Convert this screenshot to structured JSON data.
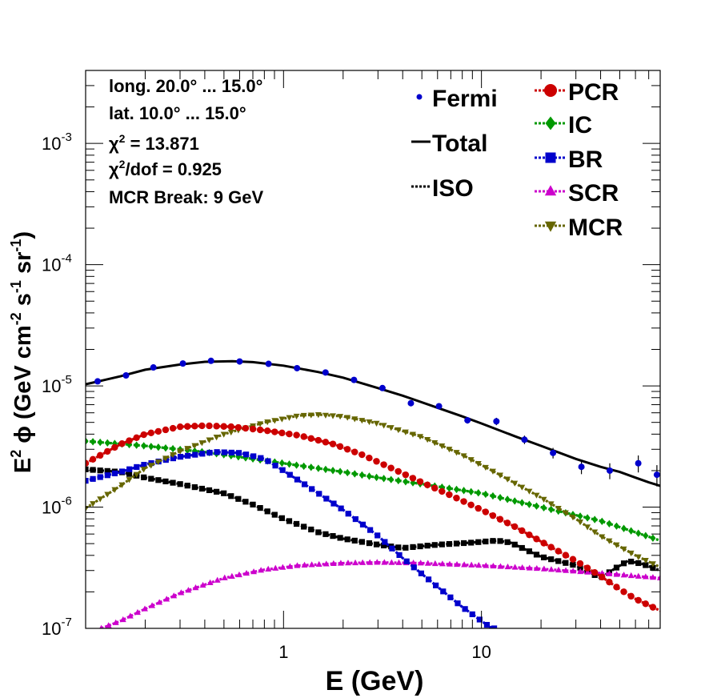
{
  "chart_data": {
    "type": "line",
    "xlabel": "E (GeV)",
    "ylabel_parts": {
      "e": "E",
      "sq": "2",
      "phi": "ϕ",
      "unit_a": "(GeV cm",
      "exp_a": "-2",
      "s": " s",
      "exp_b": "-1",
      "sr": " sr",
      "exp_c": "-1",
      "close": ")"
    },
    "x_scale": "log",
    "y_scale": "log",
    "xlim": [
      0.1,
      80
    ],
    "ylim": [
      1e-07,
      0.004
    ],
    "x_ticks": [
      {
        "v": 1,
        "label": "1"
      },
      {
        "v": 10,
        "label": "10"
      }
    ],
    "y_ticks": [
      {
        "v": 1e-07,
        "base": "10",
        "exp": "-7"
      },
      {
        "v": 1e-06,
        "base": "10",
        "exp": "-6"
      },
      {
        "v": 1e-05,
        "base": "10",
        "exp": "-5"
      },
      {
        "v": 0.0001,
        "base": "10",
        "exp": "-4"
      },
      {
        "v": 0.001,
        "base": "10",
        "exp": "-3"
      }
    ],
    "annotations": [
      {
        "text": "long. 20.0° ... 15.0°"
      },
      {
        "text": "lat. 10.0° ... 15.0°"
      },
      {
        "text_parts": [
          "χ",
          "2",
          " = 13.871"
        ]
      },
      {
        "text_parts": [
          "χ",
          "2",
          "/dof = 0.925"
        ]
      },
      {
        "text": "MCR Break:  9 GeV"
      }
    ],
    "legend": [
      {
        "name": "Fermi",
        "series": "Fermi",
        "col": 0,
        "row": 0
      },
      {
        "name": "Total",
        "series": "Total",
        "col": 0,
        "row": 1
      },
      {
        "name": "ISO",
        "series": "ISO",
        "col": 0,
        "row": 2
      },
      {
        "name": "PCR",
        "series": "PCR",
        "col": 1,
        "row": 0
      },
      {
        "name": "IC",
        "series": "IC",
        "col": 1,
        "row": 1
      },
      {
        "name": "BR",
        "series": "BR",
        "col": 1,
        "row": 2
      },
      {
        "name": "SCR",
        "series": "SCR",
        "col": 1,
        "row": 3
      },
      {
        "name": "MCR",
        "series": "MCR",
        "col": 1,
        "row": 4
      }
    ],
    "fermi": {
      "color": "#0000cc",
      "points": [
        {
          "x": 0.115,
          "y": 1.09e-05,
          "err": 0.03
        },
        {
          "x": 0.16,
          "y": 1.22e-05,
          "err": 0.03
        },
        {
          "x": 0.22,
          "y": 1.42e-05,
          "err": 0.03
        },
        {
          "x": 0.31,
          "y": 1.53e-05,
          "err": 0.03
        },
        {
          "x": 0.43,
          "y": 1.61e-05,
          "err": 0.03
        },
        {
          "x": 0.6,
          "y": 1.59e-05,
          "err": 0.03
        },
        {
          "x": 0.84,
          "y": 1.52e-05,
          "err": 0.03
        },
        {
          "x": 1.17,
          "y": 1.4e-05,
          "err": 0.03
        },
        {
          "x": 1.63,
          "y": 1.29e-05,
          "err": 0.03
        },
        {
          "x": 2.27,
          "y": 1.12e-05,
          "err": 0.03
        },
        {
          "x": 3.16,
          "y": 9.6e-06,
          "err": 0.03
        },
        {
          "x": 4.4,
          "y": 7.2e-06,
          "err": 0.03
        },
        {
          "x": 6.1,
          "y": 6.8e-06,
          "err": 0.03
        },
        {
          "x": 8.5,
          "y": 5.2e-06,
          "err": 0.06
        },
        {
          "x": 11.9,
          "y": 5.1e-06,
          "err": 0.07
        },
        {
          "x": 16.5,
          "y": 3.6e-06,
          "err": 0.08
        },
        {
          "x": 23,
          "y": 2.8e-06,
          "err": 0.1
        },
        {
          "x": 32,
          "y": 2.15e-06,
          "err": 0.13
        },
        {
          "x": 44.5,
          "y": 2e-06,
          "err": 0.15
        },
        {
          "x": 62,
          "y": 2.3e-06,
          "err": 0.16
        },
        {
          "x": 77,
          "y": 1.85e-06,
          "err": 0.2
        }
      ]
    },
    "series": [
      {
        "name": "Total",
        "color": "#000000",
        "style": "solid",
        "marker": "none",
        "points": [
          [
            0.1,
            1.03e-05
          ],
          [
            0.15,
            1.2e-05
          ],
          [
            0.2,
            1.36e-05
          ],
          [
            0.3,
            1.5e-05
          ],
          [
            0.4,
            1.58e-05
          ],
          [
            0.55,
            1.6e-05
          ],
          [
            0.7,
            1.57e-05
          ],
          [
            1,
            1.47e-05
          ],
          [
            1.5,
            1.3e-05
          ],
          [
            2,
            1.17e-05
          ],
          [
            3,
            9.6e-06
          ],
          [
            4,
            8.3e-06
          ],
          [
            6,
            6.6e-06
          ],
          [
            8,
            5.6e-06
          ],
          [
            10,
            4.9e-06
          ],
          [
            15,
            3.8e-06
          ],
          [
            20,
            3.2e-06
          ],
          [
            30,
            2.5e-06
          ],
          [
            40,
            2.15e-06
          ],
          [
            50,
            1.95e-06
          ],
          [
            60,
            1.75e-06
          ],
          [
            70,
            1.6e-06
          ],
          [
            80,
            1.5e-06
          ]
        ]
      },
      {
        "name": "ISO",
        "color": "#000000",
        "style": "dotted",
        "marker": "square",
        "points": [
          [
            0.1,
            2.05e-06
          ],
          [
            0.15,
            1.95e-06
          ],
          [
            0.2,
            1.75e-06
          ],
          [
            0.3,
            1.55e-06
          ],
          [
            0.5,
            1.3e-06
          ],
          [
            0.7,
            1.05e-06
          ],
          [
            1,
            8e-07
          ],
          [
            1.5,
            6.2e-07
          ],
          [
            2,
            5.5e-07
          ],
          [
            3,
            4.9e-07
          ],
          [
            4,
            4.6e-07
          ],
          [
            6,
            4.9e-07
          ],
          [
            9,
            5.1e-07
          ],
          [
            12,
            5.3e-07
          ],
          [
            14,
            5.1e-07
          ],
          [
            20,
            3.9e-07
          ],
          [
            30,
            3.3e-07
          ],
          [
            40,
            2.6e-07
          ],
          [
            47,
            3.1e-07
          ],
          [
            55,
            3.6e-07
          ],
          [
            65,
            3.4e-07
          ],
          [
            80,
            3e-07
          ]
        ]
      },
      {
        "name": "PCR",
        "color": "#cc0000",
        "style": "dotted",
        "marker": "circle",
        "points": [
          [
            0.1,
            2.3e-06
          ],
          [
            0.15,
            3.3e-06
          ],
          [
            0.2,
            4e-06
          ],
          [
            0.3,
            4.6e-06
          ],
          [
            0.4,
            4.7e-06
          ],
          [
            0.55,
            4.6e-06
          ],
          [
            0.8,
            4.3e-06
          ],
          [
            1.2,
            3.9e-06
          ],
          [
            1.8,
            3.3e-06
          ],
          [
            2.5,
            2.7e-06
          ],
          [
            3.5,
            2.1e-06
          ],
          [
            5,
            1.6e-06
          ],
          [
            7,
            1.25e-06
          ],
          [
            10,
            9.5e-07
          ],
          [
            15,
            6.8e-07
          ],
          [
            20,
            5.2e-07
          ],
          [
            30,
            3.6e-07
          ],
          [
            40,
            2.7e-07
          ],
          [
            50,
            2.1e-07
          ],
          [
            60,
            1.75e-07
          ],
          [
            70,
            1.55e-07
          ],
          [
            80,
            1.4e-07
          ]
        ]
      },
      {
        "name": "IC",
        "color": "#009900",
        "style": "dotted",
        "marker": "diamond",
        "points": [
          [
            0.1,
            3.5e-06
          ],
          [
            0.2,
            3.2e-06
          ],
          [
            0.4,
            2.85e-06
          ],
          [
            0.7,
            2.5e-06
          ],
          [
            1,
            2.3e-06
          ],
          [
            2,
            1.95e-06
          ],
          [
            3,
            1.75e-06
          ],
          [
            5,
            1.55e-06
          ],
          [
            10,
            1.3e-06
          ],
          [
            20,
            1e-06
          ],
          [
            40,
            7.7e-07
          ],
          [
            60,
            6.2e-07
          ],
          [
            80,
            5.3e-07
          ]
        ]
      },
      {
        "name": "BR",
        "color": "#0000cc",
        "style": "dotted",
        "marker": "square",
        "points": [
          [
            0.1,
            1.65e-06
          ],
          [
            0.15,
            1.95e-06
          ],
          [
            0.2,
            2.25e-06
          ],
          [
            0.3,
            2.6e-06
          ],
          [
            0.45,
            2.85e-06
          ],
          [
            0.6,
            2.8e-06
          ],
          [
            0.8,
            2.5e-06
          ],
          [
            1,
            2e-06
          ],
          [
            1.5,
            1.3e-06
          ],
          [
            2,
            9.5e-07
          ],
          [
            3,
            5.8e-07
          ],
          [
            4,
            3.8e-07
          ],
          [
            6,
            2.2e-07
          ],
          [
            8,
            1.5e-07
          ],
          [
            11,
            1.03e-07
          ],
          [
            11.6,
            1e-07
          ]
        ]
      },
      {
        "name": "SCR",
        "color": "#cc00cc",
        "style": "dotted",
        "marker": "triangle-up",
        "points": [
          [
            0.12,
            1e-07
          ],
          [
            0.15,
            1.15e-07
          ],
          [
            0.2,
            1.45e-07
          ],
          [
            0.3,
            1.95e-07
          ],
          [
            0.5,
            2.6e-07
          ],
          [
            0.8,
            3.05e-07
          ],
          [
            1.2,
            3.3e-07
          ],
          [
            2,
            3.45e-07
          ],
          [
            3,
            3.5e-07
          ],
          [
            5,
            3.45e-07
          ],
          [
            10,
            3.3e-07
          ],
          [
            20,
            3.1e-07
          ],
          [
            40,
            2.85e-07
          ],
          [
            80,
            2.6e-07
          ]
        ]
      },
      {
        "name": "MCR",
        "color": "#666600",
        "style": "dotted",
        "marker": "triangle-down",
        "points": [
          [
            0.1,
            9.8e-07
          ],
          [
            0.15,
            1.5e-06
          ],
          [
            0.2,
            2.1e-06
          ],
          [
            0.3,
            2.9e-06
          ],
          [
            0.5,
            4e-06
          ],
          [
            0.8,
            5e-06
          ],
          [
            1.2,
            5.7e-06
          ],
          [
            1.5,
            5.8e-06
          ],
          [
            2,
            5.6e-06
          ],
          [
            3,
            4.9e-06
          ],
          [
            5,
            3.8e-06
          ],
          [
            8,
            2.7e-06
          ],
          [
            12,
            1.9e-06
          ],
          [
            20,
            1.2e-06
          ],
          [
            30,
            8e-07
          ],
          [
            40,
            5.8e-07
          ],
          [
            60,
            4e-07
          ],
          [
            80,
            3.2e-07
          ]
        ]
      }
    ]
  }
}
